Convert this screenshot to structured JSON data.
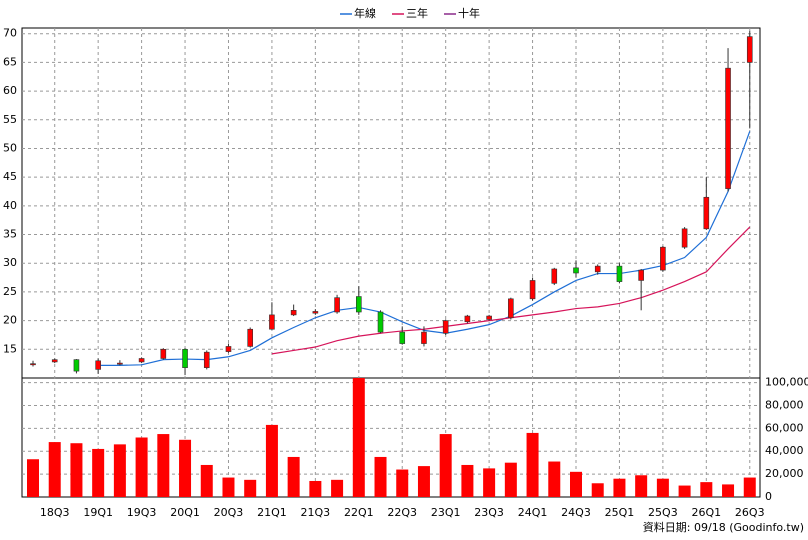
{
  "chart_data": {
    "type": "candlestick",
    "categories": [
      null,
      "18Q3",
      null,
      "19Q1",
      null,
      "19Q3",
      null,
      "20Q1",
      null,
      "20Q3",
      null,
      "21Q1",
      null,
      "21Q3",
      null,
      "22Q1",
      null,
      "22Q3",
      null,
      "23Q1",
      null,
      "23Q3",
      null,
      "24Q1",
      null,
      "24Q3",
      null,
      "25Q1",
      null,
      "25Q3",
      null,
      "26Q1",
      null,
      "26Q3"
    ],
    "open": [
      12.3,
      12.8,
      13.2,
      11.5,
      12.4,
      12.8,
      13.4,
      15,
      11.8,
      14.6,
      15.5,
      18.5,
      21,
      21.3,
      21.5,
      24.2,
      21.5,
      18,
      16,
      17.8,
      19.8,
      20.2,
      20.5,
      23.8,
      26.5,
      29.2,
      28.5,
      29.5,
      27,
      28.8,
      32.8,
      36,
      43,
      65
    ],
    "high": [
      13,
      13.4,
      13.3,
      13.4,
      13.1,
      13.6,
      15.2,
      15.2,
      14.8,
      16,
      18.8,
      23.2,
      22.8,
      22,
      24.5,
      26,
      21.8,
      19,
      19,
      20.2,
      21,
      21,
      24,
      27.5,
      29.2,
      30.5,
      29.8,
      30,
      29,
      33,
      36.3,
      45,
      67.5,
      70.5
    ],
    "low": [
      12,
      12.6,
      10.8,
      10.7,
      12.2,
      12.6,
      13.2,
      10.5,
      11.5,
      14.4,
      15.3,
      18.4,
      20.8,
      21,
      21.2,
      21,
      17.8,
      15.8,
      15.5,
      17.5,
      19.5,
      20,
      20.2,
      23.5,
      26.2,
      27.5,
      28,
      26.5,
      21.8,
      28.5,
      32.5,
      35.8,
      42.5,
      53.5
    ],
    "close": [
      12.5,
      13.2,
      11.2,
      13,
      12.6,
      13.4,
      15,
      11.8,
      14.5,
      15.5,
      18.5,
      21,
      21.8,
      21.6,
      24,
      21.5,
      18,
      16,
      18,
      20,
      20.8,
      20.8,
      23.8,
      27,
      29,
      28.3,
      29.5,
      26.8,
      28.8,
      32.8,
      36,
      41.5,
      64,
      69.5
    ],
    "up_color": "#ff0000",
    "down_color": "#00cc00",
    "series": [
      {
        "name": "年線",
        "color": "#1f6fd6",
        "values": [
          null,
          null,
          null,
          12.2,
          12.2,
          12.3,
          13.2,
          13.3,
          13.2,
          13.7,
          14.8,
          17,
          18.8,
          20.5,
          21.8,
          22.3,
          21.5,
          19.8,
          18.3,
          17.8,
          18.5,
          19.3,
          20.8,
          22.8,
          25,
          27,
          28.2,
          28.2,
          28.8,
          29.6,
          31,
          34.5,
          42.5,
          53
        ]
      },
      {
        "name": "三年",
        "color": "#d6145a",
        "values": [
          null,
          null,
          null,
          null,
          null,
          null,
          null,
          null,
          null,
          null,
          null,
          14.2,
          14.8,
          15.4,
          16.5,
          17.3,
          17.8,
          18.2,
          18.5,
          19,
          19.5,
          20,
          20.5,
          21,
          21.5,
          22.1,
          22.4,
          23,
          24,
          25.3,
          26.8,
          28.5,
          32.5,
          36.3
        ]
      },
      {
        "name": "十年",
        "color": "#8a2a8a",
        "values": [
          null,
          null,
          null,
          null,
          null,
          null,
          null,
          null,
          null,
          null,
          null,
          null,
          null,
          null,
          null,
          null,
          null,
          null,
          null,
          null,
          null,
          null,
          null,
          null,
          null,
          null,
          null,
          null,
          null,
          null,
          null,
          null,
          null,
          null
        ]
      }
    ],
    "ylim": [
      10,
      71
    ],
    "yticks": [
      15,
      20,
      25,
      30,
      35,
      40,
      45,
      50,
      55,
      60,
      65,
      70
    ],
    "grid": true,
    "volume": {
      "color": "#ff0000",
      "values": [
        33000,
        48000,
        47000,
        42000,
        46000,
        52000,
        55000,
        50000,
        28000,
        17000,
        15000,
        63000,
        35000,
        14000,
        15000,
        104000,
        35000,
        24000,
        27000,
        55000,
        28000,
        25000,
        30000,
        56000,
        31000,
        22000,
        12000,
        16000,
        19000,
        16000,
        10000,
        13000,
        11000,
        17000
      ],
      "ylim": [
        0,
        104000
      ],
      "yticks": [
        0,
        {
          "value": 20000,
          "label": "20,000"
        },
        {
          "value": 40000,
          "label": "40,000"
        },
        {
          "value": 60000,
          "label": "60,000"
        },
        {
          "value": 80000,
          "label": "80,000"
        },
        {
          "value": 100000,
          "label": "100,000"
        }
      ]
    },
    "footnote": "資料日期: 09/18 (Goodinfo.tw)"
  }
}
